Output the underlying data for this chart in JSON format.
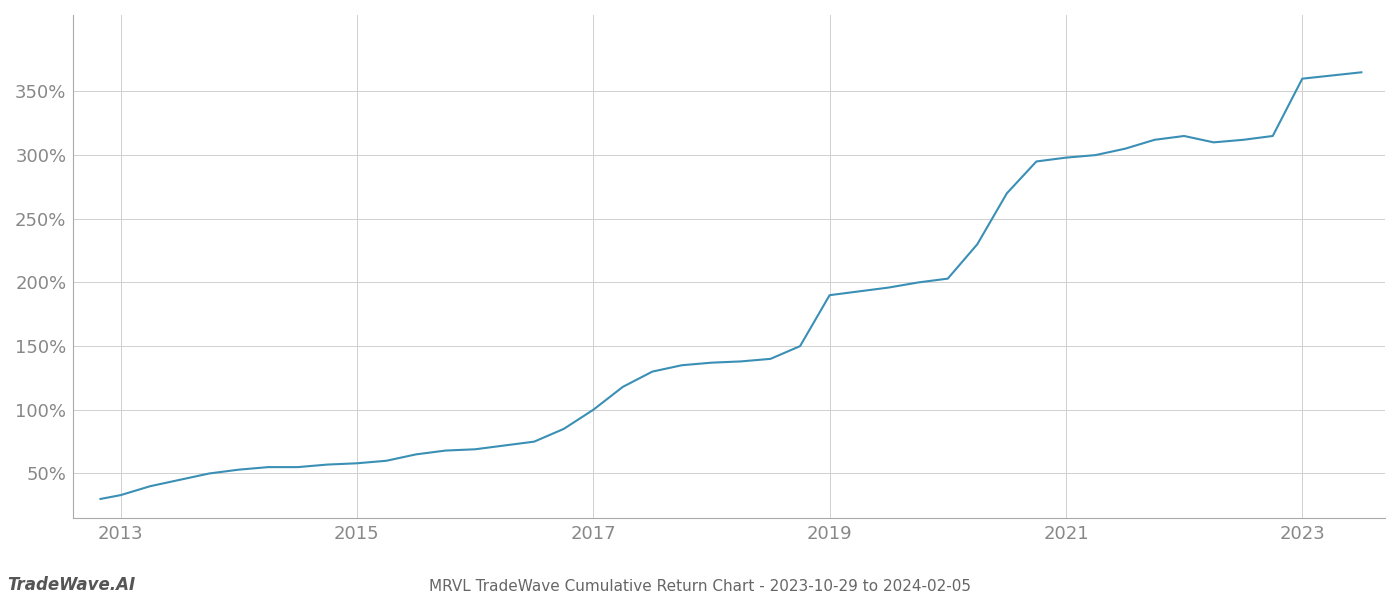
{
  "title": "MRVL TradeWave Cumulative Return Chart - 2023-10-29 to 2024-02-05",
  "watermark": "TradeWave.AI",
  "line_color": "#3a8fb5",
  "background_color": "#ffffff",
  "grid_color": "#d0d0d0",
  "axis_color": "#aaaaaa",
  "x_tick_color": "#888888",
  "y_tick_color": "#888888",
  "xlim": [
    2012.6,
    2023.7
  ],
  "ylim": [
    15,
    410
  ],
  "x_ticks": [
    2013,
    2015,
    2017,
    2019,
    2021,
    2023
  ],
  "y_ticks": [
    50,
    100,
    150,
    200,
    250,
    300,
    350
  ],
  "years": [
    2012.83,
    2013.0,
    2013.25,
    2013.5,
    2013.75,
    2014.0,
    2014.25,
    2014.5,
    2014.75,
    2015.0,
    2015.25,
    2015.5,
    2015.75,
    2016.0,
    2016.25,
    2016.5,
    2016.75,
    2017.0,
    2017.25,
    2017.5,
    2017.75,
    2018.0,
    2018.25,
    2018.5,
    2018.75,
    2019.0,
    2019.25,
    2019.5,
    2019.75,
    2020.0,
    2020.25,
    2020.5,
    2020.75,
    2021.0,
    2021.25,
    2021.5,
    2021.75,
    2022.0,
    2022.25,
    2022.5,
    2022.75,
    2023.0,
    2023.5
  ],
  "values": [
    30,
    33,
    40,
    45,
    50,
    53,
    55,
    55,
    57,
    58,
    60,
    65,
    68,
    69,
    72,
    75,
    85,
    100,
    118,
    130,
    135,
    137,
    138,
    140,
    150,
    190,
    193,
    196,
    200,
    203,
    230,
    270,
    295,
    298,
    300,
    305,
    312,
    315,
    310,
    312,
    315,
    360,
    365
  ]
}
